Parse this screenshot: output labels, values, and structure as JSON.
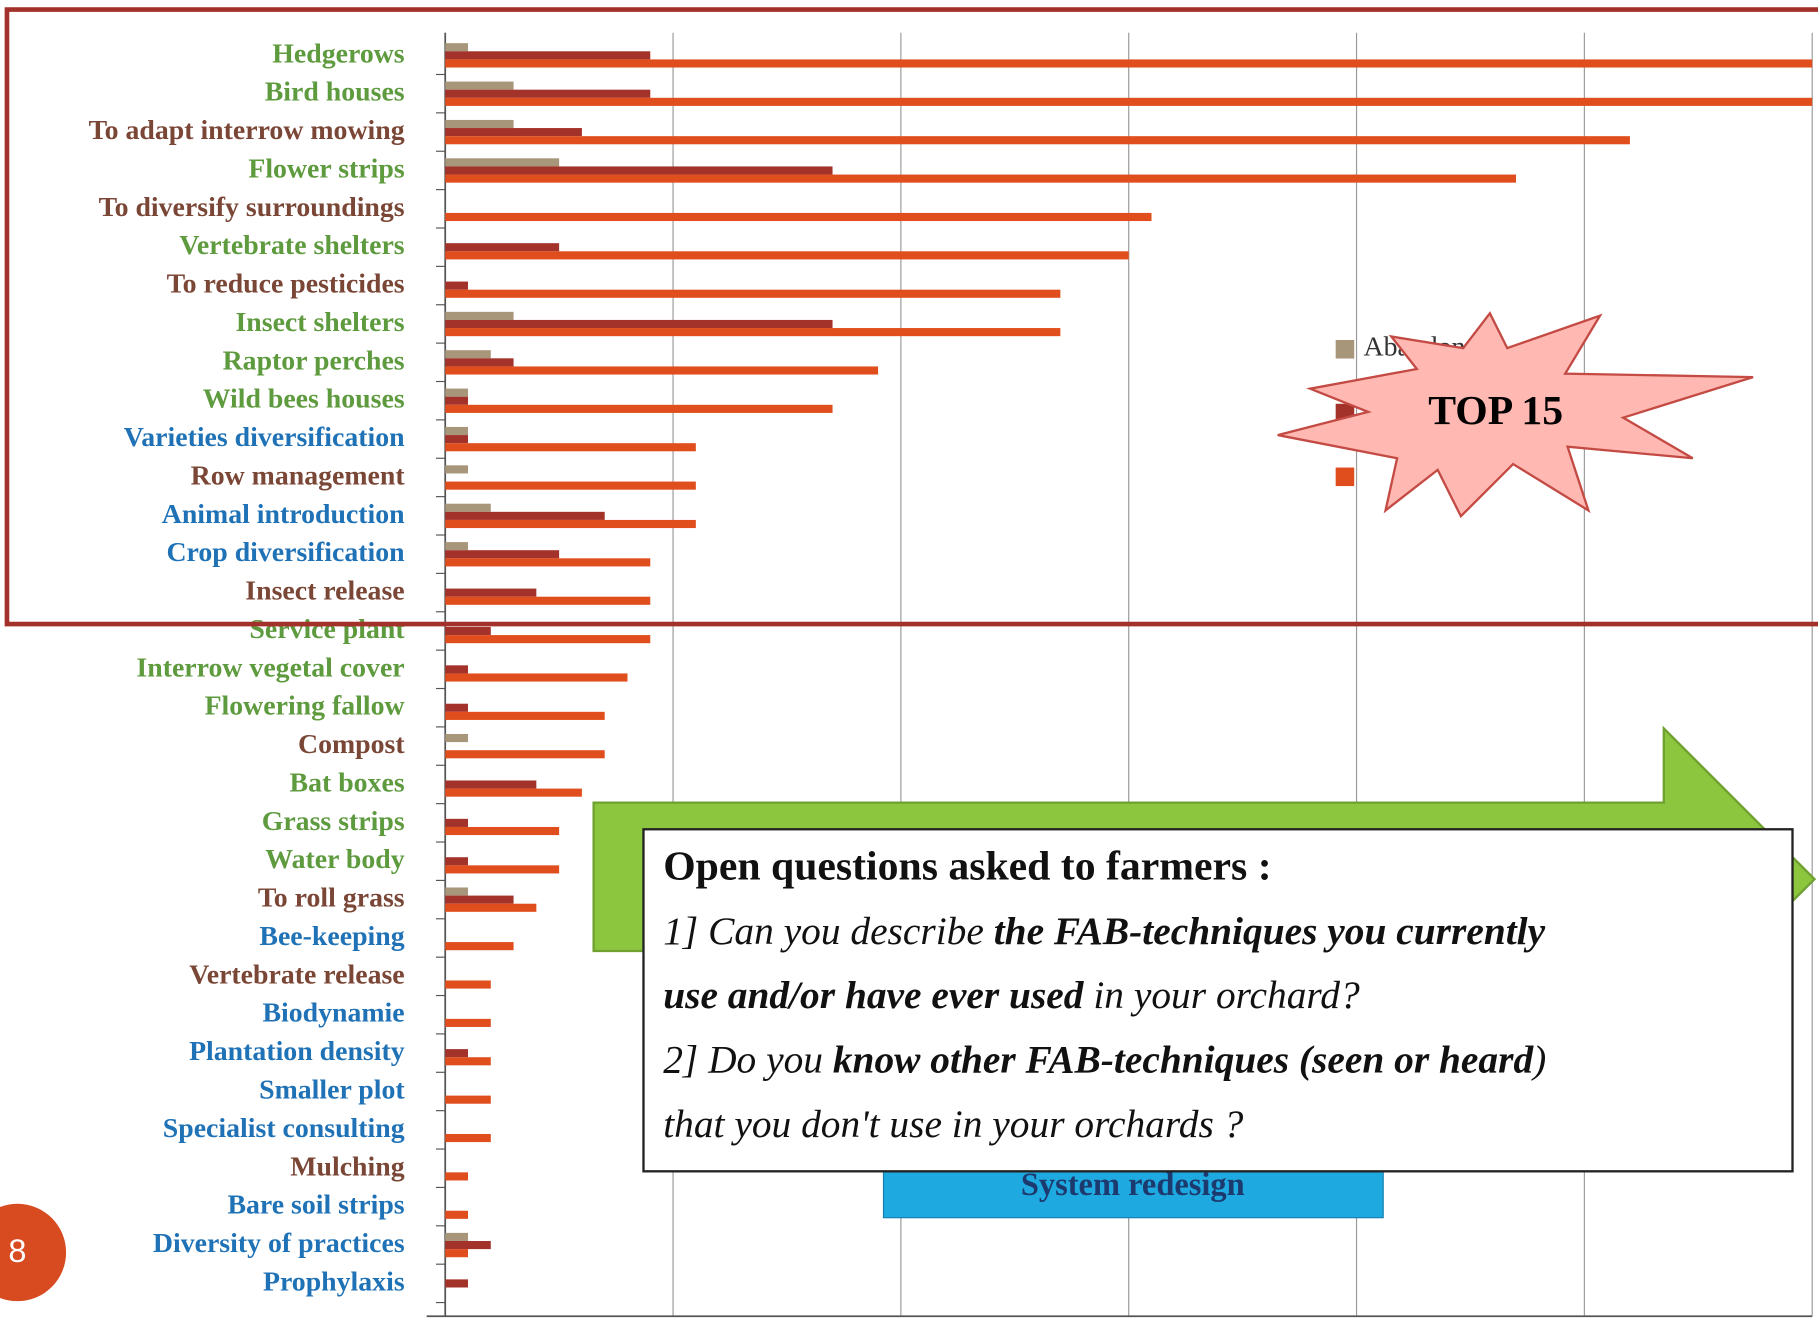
{
  "chart_data": {
    "type": "barh",
    "categories": [
      "Hedgerows",
      "Bird houses",
      "To adapt interrow mowing",
      "Flower strips",
      "To diversify surroundings",
      "Vertebrate shelters",
      "To reduce pesticides",
      "Insect shelters",
      "Raptor perches",
      "Wild bees houses",
      "Varieties diversification",
      "Row management",
      "Animal introduction",
      "Crop diversification",
      "Insect release",
      "Service plant",
      "Interrow vegetal cover",
      "Flowering fallow",
      "Compost",
      "Bat boxes",
      "Grass strips",
      "Water body",
      "To roll grass",
      "Bee-keeping",
      "Vertebrate release",
      "Biodynamie",
      "Plantation density",
      "Smaller plot",
      "Specialist consulting",
      "Mulching",
      "Bare soil strips",
      "Diversity of practices",
      "Prophylaxis"
    ],
    "label_colors": [
      "#5e9a3e",
      "#5e9a3e",
      "#7a4636",
      "#5e9a3e",
      "#7a4636",
      "#5e9a3e",
      "#7a4636",
      "#5e9a3e",
      "#5e9a3e",
      "#5e9a3e",
      "#1f72b6",
      "#7a4636",
      "#1f72b6",
      "#1f72b6",
      "#7a4636",
      "#5e9a3e",
      "#5e9a3e",
      "#5e9a3e",
      "#7a4636",
      "#5e9a3e",
      "#5e9a3e",
      "#5e9a3e",
      "#7a4636",
      "#1f72b6",
      "#7a4636",
      "#1f72b6",
      "#1f72b6",
      "#1f72b6",
      "#1f72b6",
      "#7a4636",
      "#1f72b6",
      "#1f72b6",
      "#1f72b6"
    ],
    "series": [
      {
        "name": "Abandoned",
        "color": "#a8967a",
        "values": [
          1,
          3,
          3,
          5,
          0,
          0,
          0,
          3,
          2,
          1,
          1,
          1,
          2,
          1,
          0,
          0,
          0,
          0,
          1,
          0,
          0,
          0,
          1,
          0,
          0,
          0,
          0,
          0,
          0,
          0,
          0,
          1,
          0
        ]
      },
      {
        "color": "#a3322a",
        "values": [
          9,
          9,
          6,
          17,
          0,
          5,
          1,
          17,
          3,
          1,
          1,
          0,
          7,
          5,
          4,
          2,
          1,
          1,
          0,
          4,
          1,
          1,
          3,
          0,
          0,
          0,
          1,
          0,
          0,
          0,
          0,
          2,
          1
        ]
      },
      {
        "color": "#e04e1e",
        "values": [
          60,
          60,
          52,
          47,
          31,
          30,
          27,
          27,
          19,
          17,
          11,
          11,
          11,
          9,
          9,
          9,
          8,
          7,
          7,
          6,
          5,
          5,
          4,
          3,
          2,
          2,
          2,
          2,
          2,
          1,
          1,
          1,
          0
        ]
      }
    ],
    "xlim": [
      0,
      60
    ],
    "xticks": [
      0,
      10,
      20,
      30,
      40,
      50,
      60
    ],
    "grid": true
  },
  "callout": "TOP 15",
  "redesign": "System redesign",
  "questions": {
    "heading": "Open questions asked to farmers :",
    "lines": [
      [
        {
          "text": "1] Can you describe ",
          "bold": false
        },
        {
          "text": "the FAB-techniques you currently",
          "bold": true
        }
      ],
      [
        {
          "text": "use and/or have ever used",
          "bold": true
        },
        {
          "text": " in your orchard?",
          "bold": false
        }
      ],
      [
        {
          "text": "2] Do you ",
          "bold": false
        },
        {
          "text": "know other FAB-techniques (seen or heard",
          "bold": true
        },
        {
          "text": ")",
          "bold": false
        }
      ],
      [
        {
          "text": "that you don't use in your orchards ?",
          "bold": false
        }
      ]
    ]
  },
  "page_number": "8"
}
